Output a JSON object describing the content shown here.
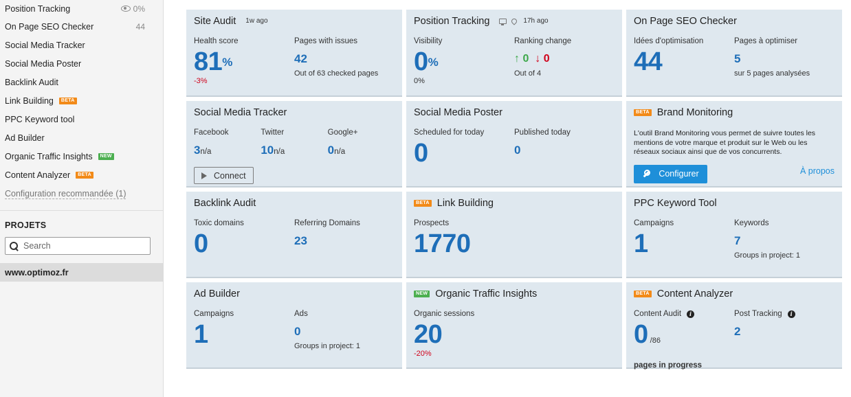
{
  "sidebar": {
    "items": [
      {
        "label": "Position Tracking",
        "meta": "0%",
        "badge": ""
      },
      {
        "label": "On Page SEO Checker",
        "meta": "44",
        "badge": ""
      },
      {
        "label": "Social Media Tracker",
        "meta": "",
        "badge": ""
      },
      {
        "label": "Social Media Poster",
        "meta": "",
        "badge": ""
      },
      {
        "label": "Backlink Audit",
        "meta": "",
        "badge": ""
      },
      {
        "label": "Link Building",
        "meta": "",
        "badge": "BETA"
      },
      {
        "label": "PPC Keyword tool",
        "meta": "",
        "badge": ""
      },
      {
        "label": "Ad Builder",
        "meta": "",
        "badge": ""
      },
      {
        "label": "Organic Traffic Insights",
        "meta": "",
        "badge": "NEW"
      },
      {
        "label": "Content Analyzer",
        "meta": "",
        "badge": "BETA"
      }
    ],
    "config_link": "Configuration recommandée (1)",
    "projects_title": "PROJETS",
    "search_placeholder": "Search",
    "project": "www.optimoz.fr"
  },
  "badges": {
    "beta": "BETA",
    "new": "NEW",
    "beta_color": "#f28a18",
    "new_color": "#4caf50"
  },
  "colors": {
    "accent": "#1e6eb8",
    "card_bg": "#dfe8ef",
    "negative": "#d0021b",
    "positive": "#3da84a",
    "button": "#1e8fd9"
  },
  "cards": {
    "site_audit": {
      "title": "Site Audit",
      "updated": "1w ago",
      "health_label": "Health score",
      "health_value": "81",
      "health_unit": "%",
      "health_change": "-3%",
      "pages_label": "Pages with issues",
      "pages_value": "42",
      "pages_sub": "Out of 63 checked pages"
    },
    "position_tracking": {
      "title": "Position Tracking",
      "updated": "17h ago",
      "visibility_label": "Visibility",
      "visibility_value": "0",
      "visibility_unit": "%",
      "visibility_sub": "0%",
      "ranking_label": "Ranking change",
      "up_value": "0",
      "down_value": "0",
      "ranking_sub": "Out of 4"
    },
    "on_page": {
      "title": "On Page SEO Checker",
      "ideas_label": "Idées d'optimisation",
      "ideas_value": "44",
      "pages_label": "Pages à optimiser",
      "pages_value": "5",
      "pages_sub": "sur 5 pages analysées"
    },
    "social_tracker": {
      "title": "Social Media Tracker",
      "facebook_label": "Facebook",
      "facebook_value": "3",
      "facebook_unit": "n/a",
      "twitter_label": "Twitter",
      "twitter_value": "10",
      "twitter_unit": "n/a",
      "google_label": "Google+",
      "google_value": "0",
      "google_unit": "n/a",
      "connect_label": "Connect"
    },
    "social_poster": {
      "title": "Social Media Poster",
      "scheduled_label": "Scheduled for today",
      "scheduled_value": "0",
      "published_label": "Published today",
      "published_value": "0"
    },
    "brand_monitoring": {
      "title": "Brand Monitoring",
      "badge": "BETA",
      "description": "L'outil Brand Monitoring vous permet de suivre toutes les mentions de votre marque et produit sur le Web ou les réseaux sociaux ainsi que de vos concurrents.",
      "button_label": "Configurer",
      "link_label": "À propos"
    },
    "backlink_audit": {
      "title": "Backlink Audit",
      "toxic_label": "Toxic domains",
      "toxic_value": "0",
      "referring_label": "Referring Domains",
      "referring_value": "23"
    },
    "link_building": {
      "title": "Link Building",
      "badge": "BETA",
      "prospects_label": "Prospects",
      "prospects_value": "1770"
    },
    "ppc": {
      "title": "PPC Keyword Tool",
      "campaigns_label": "Campaigns",
      "campaigns_value": "1",
      "keywords_label": "Keywords",
      "keywords_value": "7",
      "keywords_sub": "Groups in project: 1"
    },
    "ad_builder": {
      "title": "Ad Builder",
      "campaigns_label": "Campaigns",
      "campaigns_value": "1",
      "ads_label": "Ads",
      "ads_value": "0",
      "ads_sub": "Groups in project: 1"
    },
    "organic": {
      "title": "Organic Traffic Insights",
      "badge": "NEW",
      "sessions_label": "Organic sessions",
      "sessions_value": "20",
      "sessions_change": "-20%"
    },
    "content_analyzer": {
      "title": "Content Analyzer",
      "badge": "BETA",
      "audit_label": "Content Audit",
      "audit_value": "0",
      "audit_total": "/86",
      "audit_sub": "pages in progress",
      "post_label": "Post Tracking",
      "post_value": "2"
    }
  }
}
